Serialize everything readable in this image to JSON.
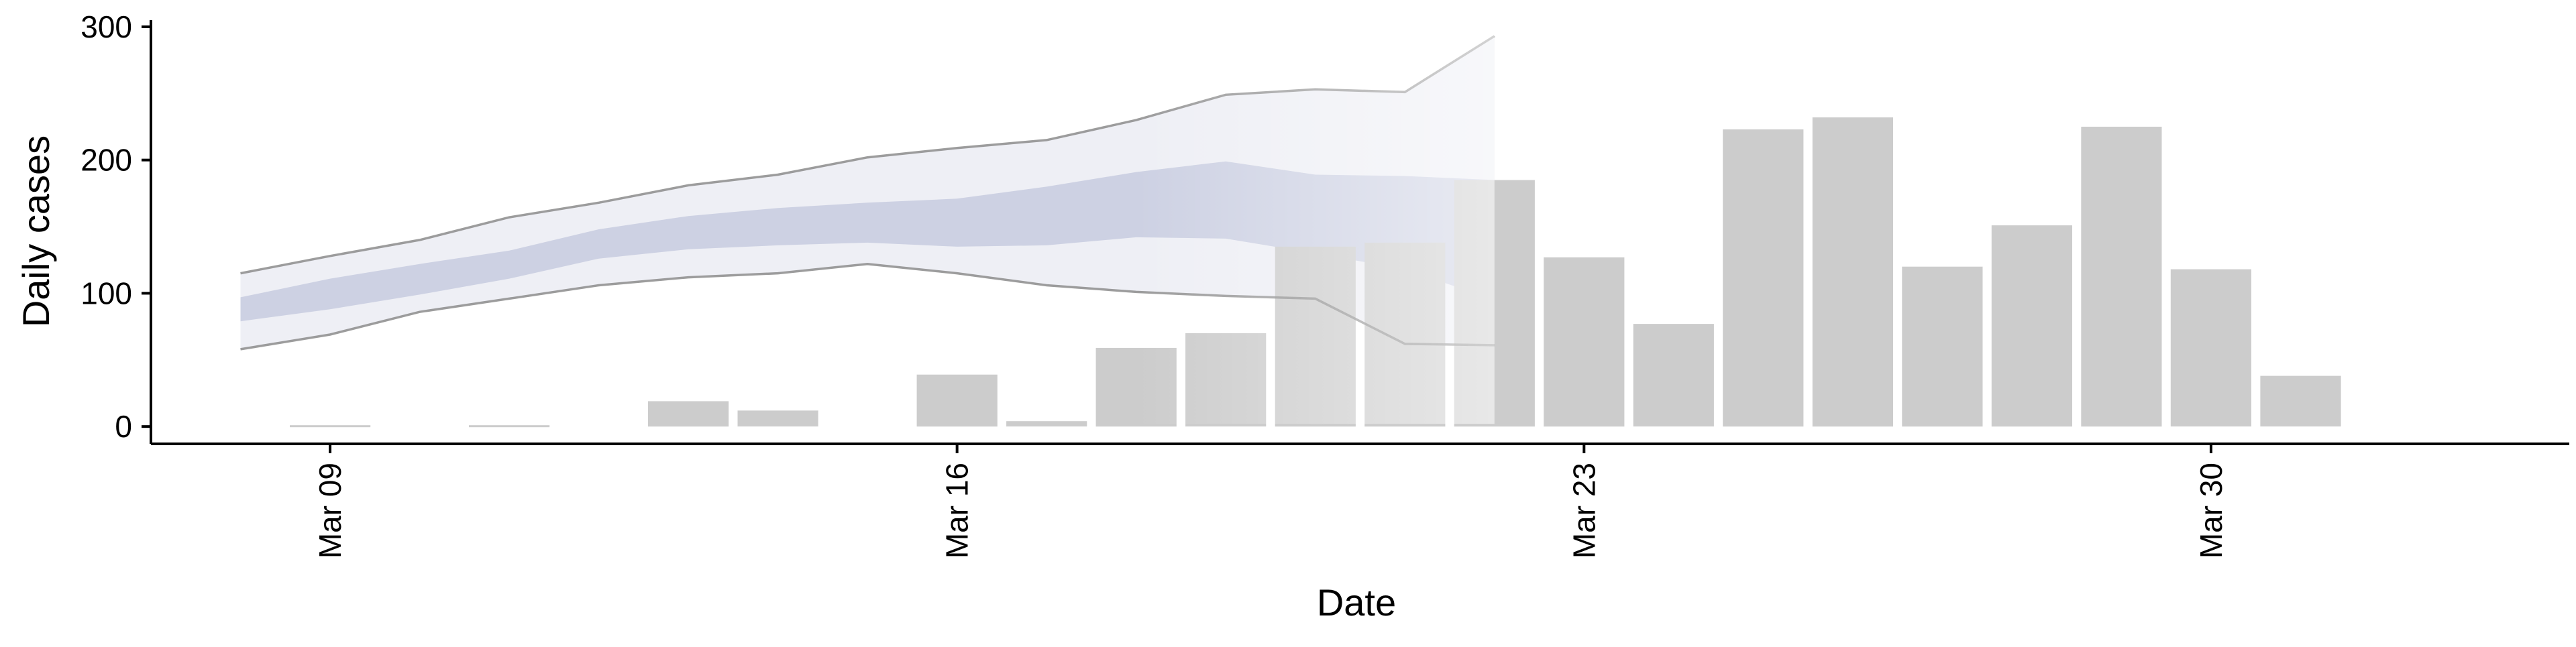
{
  "chart_data": {
    "type": "bar",
    "xlabel": "Date",
    "ylabel": "Daily cases",
    "ylim": [
      -13,
      305
    ],
    "x_range": [
      "2020-03-07",
      "2020-04-03"
    ],
    "x_ticks": [
      {
        "date": "2020-03-09",
        "label": "Mar 09"
      },
      {
        "date": "2020-03-16",
        "label": "Mar 16"
      },
      {
        "date": "2020-03-23",
        "label": "Mar 23"
      },
      {
        "date": "2020-03-30",
        "label": "Mar 30"
      }
    ],
    "y_ticks": [
      0,
      100,
      200,
      300
    ],
    "grid": false,
    "bar_color": "#cccccc",
    "band_color_inner": "#c2c7dc",
    "band_color_outer": "#e8e9f2",
    "band_line_color": "#8c8c8c",
    "bars": [
      {
        "date": "2020-03-09",
        "value": 1
      },
      {
        "date": "2020-03-11",
        "value": 1
      },
      {
        "date": "2020-03-13",
        "value": 19
      },
      {
        "date": "2020-03-14",
        "value": 12
      },
      {
        "date": "2020-03-16",
        "value": 39
      },
      {
        "date": "2020-03-17",
        "value": 4
      },
      {
        "date": "2020-03-18",
        "value": 59
      },
      {
        "date": "2020-03-19",
        "value": 70
      },
      {
        "date": "2020-03-20",
        "value": 135
      },
      {
        "date": "2020-03-21",
        "value": 138
      },
      {
        "date": "2020-03-22",
        "value": 185
      },
      {
        "date": "2020-03-23",
        "value": 127
      },
      {
        "date": "2020-03-24",
        "value": 77
      },
      {
        "date": "2020-03-25",
        "value": 223
      },
      {
        "date": "2020-03-26",
        "value": 232
      },
      {
        "date": "2020-03-27",
        "value": 120
      },
      {
        "date": "2020-03-28",
        "value": 151
      },
      {
        "date": "2020-03-29",
        "value": 225
      },
      {
        "date": "2020-03-30",
        "value": 118
      },
      {
        "date": "2020-03-31",
        "value": 38
      }
    ],
    "forecast_band": {
      "dates": [
        "2020-03-08",
        "2020-03-09",
        "2020-03-10",
        "2020-03-11",
        "2020-03-12",
        "2020-03-13",
        "2020-03-14",
        "2020-03-15",
        "2020-03-16",
        "2020-03-17",
        "2020-03-18",
        "2020-03-19",
        "2020-03-20",
        "2020-03-21",
        "2020-03-22"
      ],
      "outer_upper": [
        115,
        128,
        140,
        157,
        168,
        181,
        189,
        202,
        209,
        215,
        230,
        249,
        253,
        251,
        293
      ],
      "outer_lower": [
        58,
        69,
        86,
        96,
        106,
        112,
        115,
        122,
        115,
        106,
        101,
        98,
        96,
        62,
        61
      ],
      "inner_upper": [
        97,
        111,
        122,
        132,
        148,
        158,
        164,
        168,
        171,
        180,
        191,
        199,
        189,
        188,
        185
      ],
      "inner_lower": [
        79,
        88,
        99,
        111,
        126,
        133,
        136,
        138,
        135,
        136,
        142,
        141,
        130,
        118,
        95
      ]
    }
  }
}
